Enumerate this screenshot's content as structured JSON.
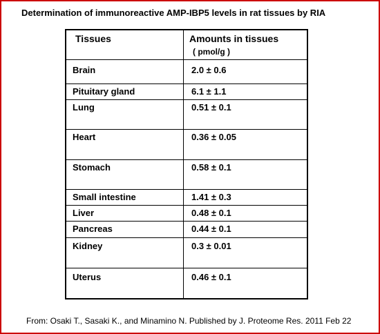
{
  "title": "Determination of immunoreactive AMP-IBP5 levels in rat tissues by RIA",
  "table": {
    "header": {
      "tissues": "Tissues",
      "amounts": "Amounts in tissues",
      "unit": "( pmol/g )"
    },
    "rows": [
      {
        "tissue": "Brain",
        "amount": "2.0 ± 0.6"
      },
      {
        "tissue": "Pituitary gland",
        "amount": "6.1 ± 1.1"
      },
      {
        "tissue": "Lung",
        "amount": "0.51 ± 0.1"
      },
      {
        "tissue": "Heart",
        "amount": "0.36 ± 0.05"
      },
      {
        "tissue": "Stomach",
        "amount": "0.58 ± 0.1"
      },
      {
        "tissue": "Small intestine",
        "amount": "1.41 ± 0.3"
      },
      {
        "tissue": "Liver",
        "amount": "0.48 ± 0.1"
      },
      {
        "tissue": "Pancreas",
        "amount": "0.44 ± 0.1"
      },
      {
        "tissue": "Kidney",
        "amount": "0.3 ± 0.01"
      },
      {
        "tissue": "Uterus",
        "amount": "0.46 ± 0.1"
      }
    ]
  },
  "footer": "From:  Osaki T., Sasaki K., and Minamino N.  Published by J. Proteome Res.  2011 Feb 22",
  "colors": {
    "frame": "#cc0000",
    "text": "#000000",
    "background": "#ffffff"
  }
}
